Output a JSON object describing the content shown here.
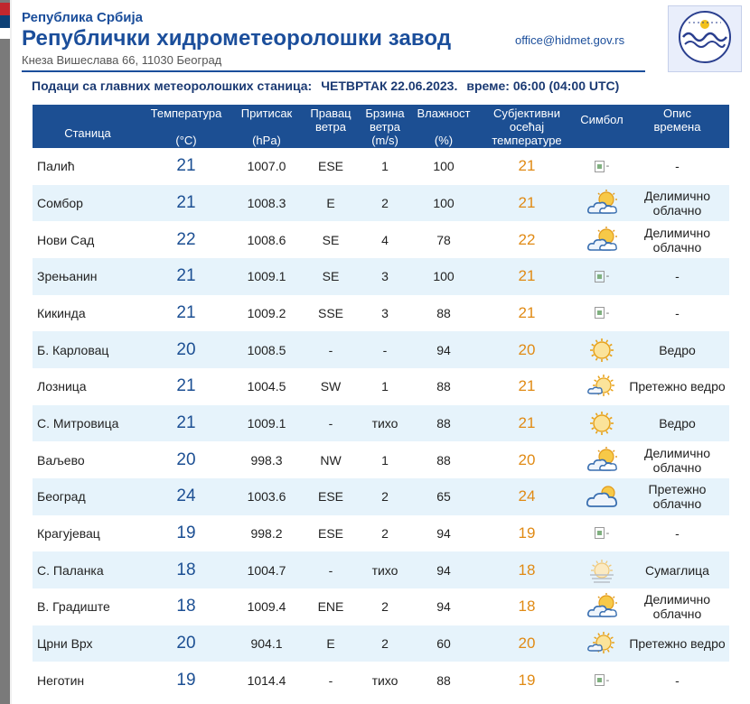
{
  "header": {
    "republic": "Република Србија",
    "institution": "Републички хидрометеоролошки завод",
    "address": "Кнеза Вишеслава 66, 11030 Београд",
    "email": "office@hidmet.gov.rs"
  },
  "subtitle": {
    "text": "Подаци са главних метеоролошких станица:",
    "day_date": "ЧЕТВРТАК 22.06.2023.",
    "time": "време: 06:00 (04:00 UTC)"
  },
  "columns": {
    "station": "Станица",
    "temp_l1": "Температура",
    "temp_l2": "(°C)",
    "press_l1": "Притисак",
    "press_l2": "(hPa)",
    "dir_l1": "Правац",
    "dir_l2": "ветра",
    "wind_l1": "Брзина",
    "wind_l2": "ветра",
    "wind_l3": "(m/s)",
    "hum_l1": "Влажност",
    "hum_l2": "(%)",
    "feel_l1": "Субјективни",
    "feel_l2": "осећај",
    "feel_l3": "температуре",
    "symbol": "Симбол",
    "desc_l1": "Опис",
    "desc_l2": "времена"
  },
  "colors": {
    "header_blue": "#1c4f93",
    "row_alt": "#e6f3fb",
    "feel_orange": "#e08a14"
  },
  "rows": [
    {
      "station": "Палић",
      "temp": "21",
      "pressure": "1007.0",
      "dir": "ESE",
      "wind": "1",
      "hum": "100",
      "feel": "21",
      "symbol": "broken-image-icon",
      "desc": "-"
    },
    {
      "station": "Сомбор",
      "temp": "21",
      "pressure": "1008.3",
      "dir": "E",
      "wind": "2",
      "hum": "100",
      "feel": "21",
      "symbol": "partly-cloudy-icon",
      "desc": "Делимично облачно"
    },
    {
      "station": "Нови Сад",
      "temp": "22",
      "pressure": "1008.6",
      "dir": "SE",
      "wind": "4",
      "hum": "78",
      "feel": "22",
      "symbol": "partly-cloudy-icon",
      "desc": "Делимично облачно"
    },
    {
      "station": "Зрењанин",
      "temp": "21",
      "pressure": "1009.1",
      "dir": "SE",
      "wind": "3",
      "hum": "100",
      "feel": "21",
      "symbol": "broken-image-icon",
      "desc": "-"
    },
    {
      "station": "Кикинда",
      "temp": "21",
      "pressure": "1009.2",
      "dir": "SSE",
      "wind": "3",
      "hum": "88",
      "feel": "21",
      "symbol": "broken-image-icon",
      "desc": "-"
    },
    {
      "station": "Б. Карловац",
      "temp": "20",
      "pressure": "1008.5",
      "dir": "-",
      "wind": "-",
      "hum": "94",
      "feel": "20",
      "symbol": "sun-icon",
      "desc": "Ведро"
    },
    {
      "station": "Лозница",
      "temp": "21",
      "pressure": "1004.5",
      "dir": "SW",
      "wind": "1",
      "hum": "88",
      "feel": "21",
      "symbol": "mostly-clear-icon",
      "desc": "Претежно ведро"
    },
    {
      "station": "С. Митровица",
      "temp": "21",
      "pressure": "1009.1",
      "dir": "-",
      "wind": "тихо",
      "hum": "88",
      "feel": "21",
      "symbol": "sun-icon",
      "desc": "Ведро"
    },
    {
      "station": "Ваљево",
      "temp": "20",
      "pressure": "998.3",
      "dir": "NW",
      "wind": "1",
      "hum": "88",
      "feel": "20",
      "symbol": "partly-cloudy-icon",
      "desc": "Делимично облачно"
    },
    {
      "station": "Београд",
      "temp": "24",
      "pressure": "1003.6",
      "dir": "ESE",
      "wind": "2",
      "hum": "65",
      "feel": "24",
      "symbol": "mostly-cloudy-icon",
      "desc": "Претежно облачно"
    },
    {
      "station": "Крагујевац",
      "temp": "19",
      "pressure": "998.2",
      "dir": "ESE",
      "wind": "2",
      "hum": "94",
      "feel": "19",
      "symbol": "broken-image-icon",
      "desc": "-"
    },
    {
      "station": "С. Паланка",
      "temp": "18",
      "pressure": "1004.7",
      "dir": "-",
      "wind": "тихо",
      "hum": "94",
      "feel": "18",
      "symbol": "mist-icon",
      "desc": "Сумаглица"
    },
    {
      "station": "В. Градиште",
      "temp": "18",
      "pressure": "1009.4",
      "dir": "ENE",
      "wind": "2",
      "hum": "94",
      "feel": "18",
      "symbol": "partly-cloudy-icon",
      "desc": "Делимично облачно"
    },
    {
      "station": "Црни Врх",
      "temp": "20",
      "pressure": "904.1",
      "dir": "E",
      "wind": "2",
      "hum": "60",
      "feel": "20",
      "symbol": "mostly-clear-icon",
      "desc": "Претежно ведро"
    },
    {
      "station": "Неготин",
      "temp": "19",
      "pressure": "1014.4",
      "dir": "-",
      "wind": "тихо",
      "hum": "88",
      "feel": "19",
      "symbol": "broken-image-icon",
      "desc": "-"
    }
  ]
}
